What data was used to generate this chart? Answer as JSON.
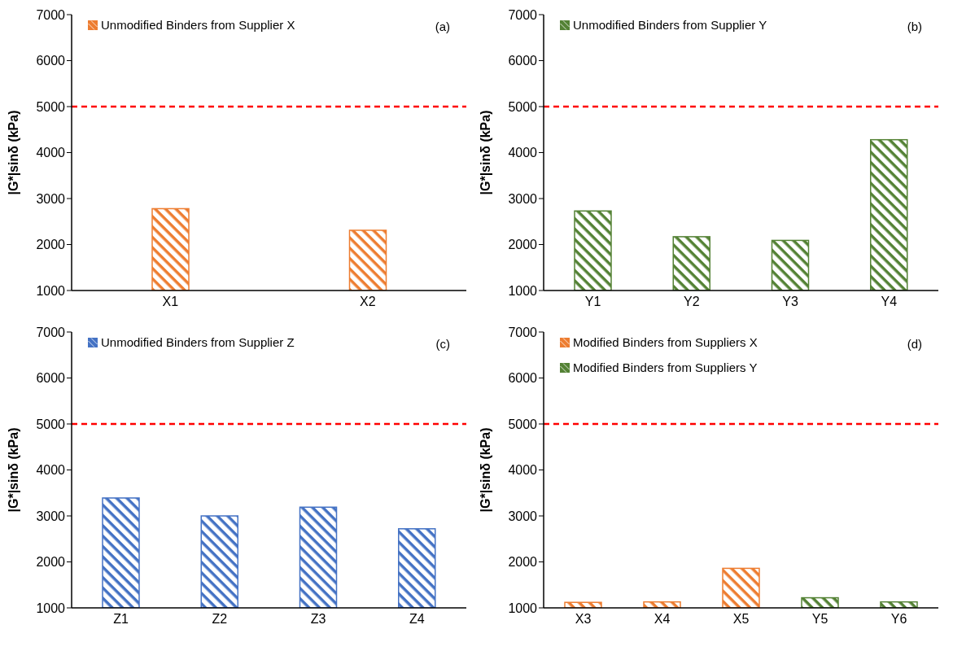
{
  "chart_data": [
    {
      "type": "bar",
      "categories": [
        "X1",
        "X2"
      ],
      "series": [
        {
          "name": "Unmodified Binders from Supplier X",
          "color": "#ed7d31",
          "values": [
            2780,
            2310
          ]
        }
      ],
      "ylabel": "|G*|sinδ (kPa)",
      "ylim": [
        1000,
        7000
      ],
      "yticks": [
        1000,
        2000,
        3000,
        4000,
        5000,
        6000,
        7000
      ],
      "ref_lines": [
        {
          "axis": "y",
          "value": 5000,
          "color": "#ff0000",
          "line_style": "dashed"
        }
      ],
      "annotations": [
        "(a)"
      ],
      "legend": "top left",
      "grid": false
    },
    {
      "type": "bar",
      "categories": [
        "Y1",
        "Y2",
        "Y3",
        "Y4"
      ],
      "series": [
        {
          "name": "Unmodified Binders from Supplier Y",
          "color": "#548235",
          "values": [
            2730,
            2170,
            2090,
            4280
          ]
        }
      ],
      "ylabel": "|G*|sinδ (kPa)",
      "ylim": [
        1000,
        7000
      ],
      "yticks": [
        1000,
        2000,
        3000,
        4000,
        5000,
        6000,
        7000
      ],
      "ref_lines": [
        {
          "axis": "y",
          "value": 5000,
          "color": "#ff0000",
          "line_style": "dashed"
        }
      ],
      "annotations": [
        "(b)"
      ],
      "legend": "top left",
      "grid": false
    },
    {
      "type": "bar",
      "categories": [
        "Z1",
        "Z2",
        "Z3",
        "Z4"
      ],
      "series": [
        {
          "name": "Unmodified Binders from Supplier Z",
          "color": "#4472c4",
          "values": [
            3390,
            3000,
            3190,
            2720
          ]
        }
      ],
      "ylabel": "|G*|sinδ (kPa)",
      "ylim": [
        1000,
        7000
      ],
      "yticks": [
        1000,
        2000,
        3000,
        4000,
        5000,
        6000,
        7000
      ],
      "ref_lines": [
        {
          "axis": "y",
          "value": 5000,
          "color": "#ff0000",
          "line_style": "dashed"
        }
      ],
      "annotations": [
        "(c)"
      ],
      "legend": "top left",
      "grid": false
    },
    {
      "type": "bar",
      "categories": [
        "X3",
        "X4",
        "X5",
        "Y5",
        "Y6"
      ],
      "series": [
        {
          "name": "Modified Binders from Suppliers X",
          "color": "#ed7d31",
          "values": [
            1120,
            1130,
            1860,
            null,
            null
          ]
        },
        {
          "name": "Modified Binders from Suppliers Y",
          "color": "#548235",
          "values": [
            null,
            null,
            null,
            1220,
            1130
          ]
        }
      ],
      "ylabel": "|G*|sinδ (kPa)",
      "ylim": [
        1000,
        7000
      ],
      "yticks": [
        1000,
        2000,
        3000,
        4000,
        5000,
        6000,
        7000
      ],
      "ref_lines": [
        {
          "axis": "y",
          "value": 5000,
          "color": "#ff0000",
          "line_style": "dashed"
        }
      ],
      "annotations": [
        "(d)"
      ],
      "legend": "top left",
      "grid": false
    }
  ]
}
